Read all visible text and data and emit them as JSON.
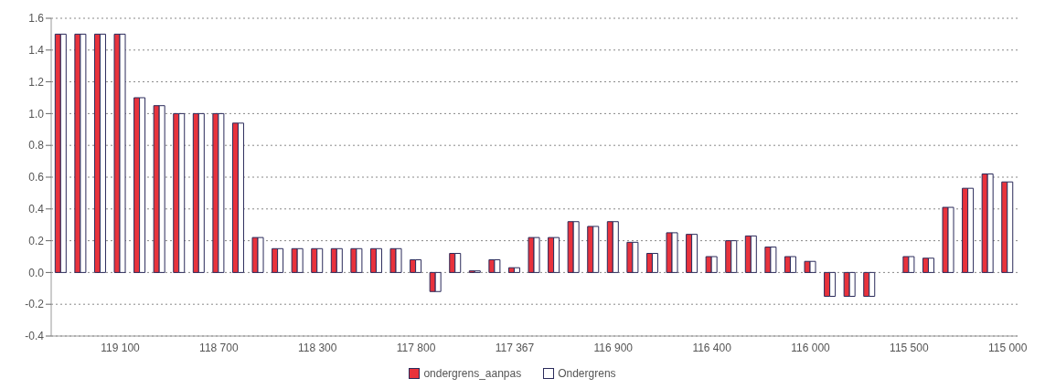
{
  "chart_data": {
    "type": "bar",
    "categories": [
      null,
      null,
      null,
      "119 100",
      null,
      null,
      null,
      null,
      "118 700",
      null,
      null,
      null,
      null,
      "118 300",
      null,
      null,
      null,
      null,
      "117 800",
      null,
      null,
      null,
      null,
      "117 367",
      null,
      null,
      null,
      null,
      "116 900",
      null,
      null,
      null,
      null,
      "116 400",
      null,
      null,
      null,
      null,
      "116 000",
      null,
      null,
      null,
      null,
      "115 500",
      null,
      null,
      null,
      null,
      "115 000"
    ],
    "series": [
      {
        "name": "ondergrens_aanpas",
        "color": "#e8323c",
        "values": [
          1.5,
          1.5,
          1.5,
          1.5,
          1.1,
          1.05,
          1.0,
          1.0,
          1.0,
          0.94,
          0.22,
          0.15,
          0.15,
          0.15,
          0.15,
          0.15,
          0.15,
          0.15,
          0.08,
          -0.12,
          0.12,
          0.01,
          0.08,
          0.03,
          0.22,
          0.22,
          0.32,
          0.29,
          0.32,
          0.19,
          0.12,
          0.25,
          0.24,
          0.1,
          0.2,
          0.23,
          0.16,
          0.1,
          0.07,
          -0.15,
          -0.15,
          -0.15,
          0.0,
          0.1,
          0.09,
          0.41,
          0.53,
          0.62,
          0.57
        ]
      },
      {
        "name": "Ondergrens",
        "color": "#ffffff",
        "values": [
          1.5,
          1.5,
          1.5,
          1.5,
          1.1,
          1.05,
          1.0,
          1.0,
          1.0,
          0.94,
          0.22,
          0.15,
          0.15,
          0.15,
          0.15,
          0.15,
          0.15,
          0.15,
          0.08,
          -0.12,
          0.12,
          0.01,
          0.08,
          0.03,
          0.22,
          0.22,
          0.32,
          0.29,
          0.32,
          0.19,
          0.12,
          0.25,
          0.24,
          0.1,
          0.2,
          0.23,
          0.16,
          0.1,
          0.07,
          -0.15,
          -0.15,
          -0.15,
          0.0,
          0.1,
          0.09,
          0.41,
          0.53,
          0.62,
          0.57
        ]
      }
    ],
    "ylim": [
      -0.4,
      1.6
    ],
    "yticks": [
      -0.4,
      {
        "value": -0.2,
        "label": "-0.2"
      },
      {
        "value": 0,
        "label": "0.0"
      },
      0.2,
      0.4,
      0.6,
      0.8,
      {
        "value": 1,
        "label": "1.0"
      },
      1.2,
      1.4,
      1.6
    ],
    "grid": "y",
    "legend": "bottom"
  }
}
